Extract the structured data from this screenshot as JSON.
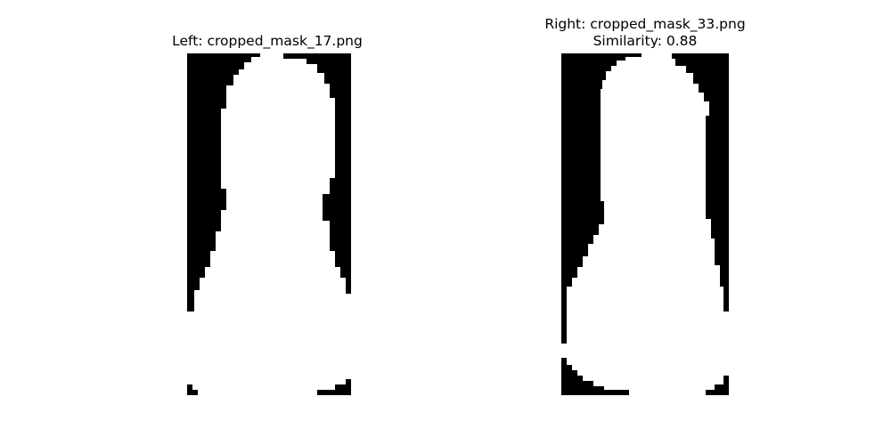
{
  "panels": {
    "left": {
      "title": "Left: cropped_mask_17.png",
      "image": "cropped_mask_17.png"
    },
    "right": {
      "title": "Right: cropped_mask_33.png",
      "similarity": "Similarity: 0.88",
      "image": "cropped_mask_33.png"
    }
  },
  "colors": {
    "background": "#ffffff",
    "mask_dark": "#000000",
    "mask_light": "#ffffff"
  }
}
